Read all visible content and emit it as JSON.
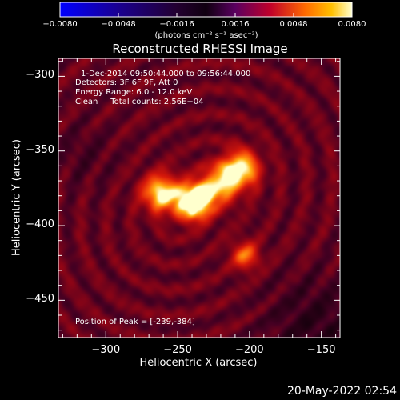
{
  "chart_data": {
    "type": "heatmap",
    "title": "Reconstructed RHESSI Image",
    "xlabel": "Heliocentric X (arcsec)",
    "ylabel": "Heliocentric Y (arcsec)",
    "xlim": [
      -333,
      -137
    ],
    "ylim": [
      -475,
      -288
    ],
    "x_ticks": [
      -300,
      -250,
      -200,
      -150
    ],
    "y_ticks": [
      -300,
      -350,
      -400,
      -450
    ],
    "x_tick_labels": [
      "−300",
      "−250",
      "−200",
      "−150"
    ],
    "y_tick_labels": [
      "−300",
      "−350",
      "−400",
      "−450"
    ],
    "colorbar": {
      "range": [
        -0.008,
        0.008
      ],
      "ticks": [
        "−0.0080",
        "−0.0048",
        "−0.0016",
        "0.0016",
        "0.0048",
        "0.0080"
      ],
      "unit_label": "(photons cm⁻² s⁻¹ asec⁻²)"
    },
    "annotations": [
      "1-Dec-2014 09:50:44.000 to 09:56:44.000",
      "Detectors: 3F 6F 9F, Att 0",
      "Energy Range: 6.0 - 12.0 keV",
      "Clean     Total counts: 2.56E+04"
    ],
    "peak_label": "Position of Peak = [-239,-384]",
    "peak": [
      -239,
      -384
    ],
    "sources": [
      {
        "x": -239,
        "y": -384,
        "intensity": 0.008
      },
      {
        "x": -262,
        "y": -378,
        "intensity": 0.0062
      },
      {
        "x": -207,
        "y": -362,
        "intensity": 0.0066
      },
      {
        "x": -222,
        "y": -373,
        "intensity": 0.005
      },
      {
        "x": -203,
        "y": -420,
        "intensity": 0.004
      }
    ]
  },
  "footer_date": "20-May-2022 02:54"
}
